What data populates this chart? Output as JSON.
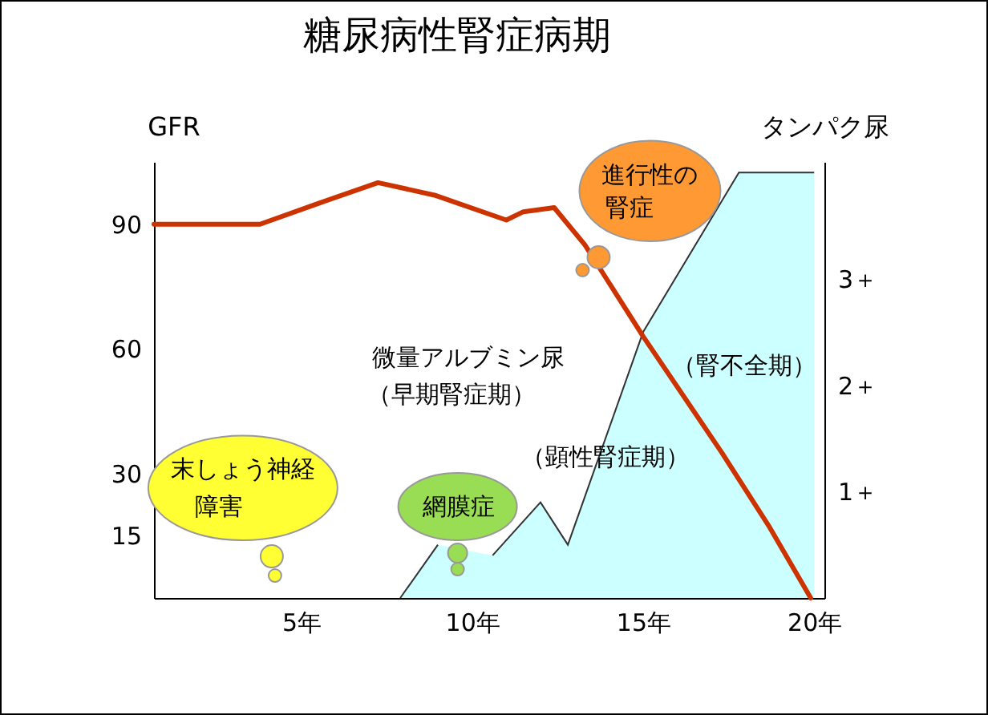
{
  "chart_data": {
    "type": "line",
    "title": "糖尿病性腎症病期",
    "ylabel": "GFR",
    "y2label": "タンパク尿",
    "xlim": [
      0.7,
      20.3
    ],
    "xticks": [
      {
        "value": 5,
        "label": "5年"
      },
      {
        "value": 10,
        "label": "10年"
      },
      {
        "value": 15,
        "label": "15年"
      },
      {
        "value": 20,
        "label": "20年"
      }
    ],
    "ylim": [
      0,
      105
    ],
    "yticks": [
      15,
      30,
      60,
      90
    ],
    "y2lim": [
      0,
      4.1
    ],
    "y2ticks": [
      {
        "value": 1,
        "label": "1＋"
      },
      {
        "value": 2,
        "label": "2＋"
      },
      {
        "value": 3,
        "label": "3＋"
      }
    ],
    "grid": false,
    "marker": "none",
    "series": [
      {
        "type": "area",
        "axis": "y2",
        "color": "#ccffff",
        "x": [
          7.9,
          9,
          9.7,
          10.6,
          12,
          12.8,
          15,
          17.8,
          20,
          20
        ],
        "values": [
          0,
          0.5,
          null,
          0.4,
          0.9,
          0.5,
          2.5,
          4,
          4,
          0
        ]
      },
      {
        "color": "#cc3300",
        "x": [
          0.7,
          3.8,
          5.5,
          7.25,
          8.9,
          11,
          11.5,
          12.4,
          13.3,
          15,
          17.3,
          18.7,
          19.9
        ],
        "values": [
          90,
          90,
          95,
          100,
          97,
          91,
          93,
          94,
          85,
          63,
          35,
          17,
          0
        ]
      }
    ],
    "annotations": [
      "末しょう神経",
      "障害",
      "網膜症",
      "進行性の",
      "腎症",
      "微量アルブミン尿",
      "（早期腎症期）",
      "（顕性腎症期）",
      "（腎不全期）"
    ]
  }
}
